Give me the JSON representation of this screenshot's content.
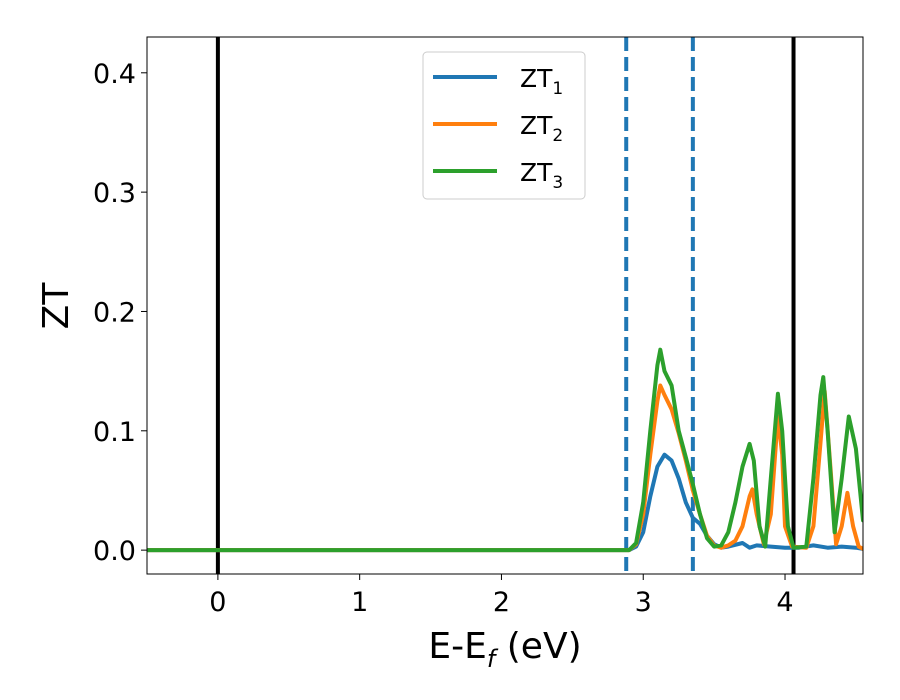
{
  "chart_data": {
    "type": "line",
    "xlabel": "E-E",
    "xlabel_sub": "f",
    "xlabel_unit": " (eV)",
    "ylabel": "ZT",
    "xlim": [
      -0.5,
      4.55
    ],
    "ylim": [
      -0.02,
      0.43
    ],
    "xticks": [
      0,
      1,
      2,
      3,
      4
    ],
    "xtick_labels": [
      "0",
      "1",
      "2",
      "3",
      "4"
    ],
    "yticks": [
      0.0,
      0.1,
      0.2,
      0.3,
      0.4
    ],
    "ytick_labels": [
      "0.0",
      "0.1",
      "0.2",
      "0.3",
      "0.4"
    ],
    "grid": false,
    "legend_position": "top-center",
    "vlines": [
      {
        "x": 0.0,
        "color": "#000000",
        "style": "solid"
      },
      {
        "x": 4.06,
        "color": "#000000",
        "style": "solid"
      },
      {
        "x": 2.88,
        "color": "#1f77b4",
        "style": "dashed"
      },
      {
        "x": 3.35,
        "color": "#1f77b4",
        "style": "dashed"
      }
    ],
    "series": [
      {
        "name": "ZT",
        "subscript": "1",
        "color": "#1f77b4",
        "points": [
          [
            -0.5,
            0
          ],
          [
            2.9,
            0
          ],
          [
            2.95,
            0.003
          ],
          [
            3.0,
            0.015
          ],
          [
            3.05,
            0.045
          ],
          [
            3.1,
            0.07
          ],
          [
            3.15,
            0.08
          ],
          [
            3.2,
            0.075
          ],
          [
            3.25,
            0.06
          ],
          [
            3.3,
            0.04
          ],
          [
            3.35,
            0.027
          ],
          [
            3.4,
            0.022
          ],
          [
            3.45,
            0.012
          ],
          [
            3.5,
            0.005
          ],
          [
            3.55,
            0.002
          ],
          [
            3.6,
            0.003
          ],
          [
            3.7,
            0.006
          ],
          [
            3.75,
            0.002
          ],
          [
            3.8,
            0.004
          ],
          [
            3.9,
            0.003
          ],
          [
            4.0,
            0.002
          ],
          [
            4.1,
            0.002
          ],
          [
            4.2,
            0.004
          ],
          [
            4.3,
            0.002
          ],
          [
            4.4,
            0.003
          ],
          [
            4.5,
            0.002
          ],
          [
            4.55,
            0.001
          ]
        ]
      },
      {
        "name": "ZT",
        "subscript": "2",
        "color": "#ff7f0e",
        "points": [
          [
            -0.5,
            0
          ],
          [
            2.9,
            0
          ],
          [
            2.95,
            0.005
          ],
          [
            3.0,
            0.03
          ],
          [
            3.05,
            0.08
          ],
          [
            3.1,
            0.125
          ],
          [
            3.12,
            0.138
          ],
          [
            3.15,
            0.13
          ],
          [
            3.2,
            0.118
          ],
          [
            3.25,
            0.098
          ],
          [
            3.3,
            0.075
          ],
          [
            3.35,
            0.05
          ],
          [
            3.4,
            0.03
          ],
          [
            3.45,
            0.012
          ],
          [
            3.5,
            0.004
          ],
          [
            3.55,
            0.002
          ],
          [
            3.6,
            0.004
          ],
          [
            3.65,
            0.008
          ],
          [
            3.7,
            0.02
          ],
          [
            3.75,
            0.045
          ],
          [
            3.77,
            0.051
          ],
          [
            3.8,
            0.03
          ],
          [
            3.85,
            0.005
          ],
          [
            3.9,
            0.03
          ],
          [
            3.95,
            0.112
          ],
          [
            3.98,
            0.08
          ],
          [
            4.0,
            0.02
          ],
          [
            4.05,
            0.003
          ],
          [
            4.15,
            0.002
          ],
          [
            4.2,
            0.02
          ],
          [
            4.25,
            0.09
          ],
          [
            4.28,
            0.133
          ],
          [
            4.32,
            0.07
          ],
          [
            4.36,
            0.005
          ],
          [
            4.4,
            0.02
          ],
          [
            4.44,
            0.048
          ],
          [
            4.48,
            0.02
          ],
          [
            4.52,
            0.003
          ],
          [
            4.55,
            0.001
          ]
        ]
      },
      {
        "name": "ZT",
        "subscript": "3",
        "color": "#2ca02c",
        "points": [
          [
            -0.5,
            0
          ],
          [
            2.9,
            0
          ],
          [
            2.95,
            0.006
          ],
          [
            3.0,
            0.04
          ],
          [
            3.05,
            0.1
          ],
          [
            3.1,
            0.155
          ],
          [
            3.12,
            0.168
          ],
          [
            3.15,
            0.15
          ],
          [
            3.2,
            0.138
          ],
          [
            3.25,
            0.1
          ],
          [
            3.3,
            0.078
          ],
          [
            3.35,
            0.055
          ],
          [
            3.4,
            0.03
          ],
          [
            3.45,
            0.01
          ],
          [
            3.5,
            0.003
          ],
          [
            3.55,
            0.004
          ],
          [
            3.6,
            0.015
          ],
          [
            3.65,
            0.04
          ],
          [
            3.7,
            0.07
          ],
          [
            3.75,
            0.089
          ],
          [
            3.78,
            0.075
          ],
          [
            3.82,
            0.02
          ],
          [
            3.86,
            0.003
          ],
          [
            3.9,
            0.06
          ],
          [
            3.95,
            0.131
          ],
          [
            3.98,
            0.1
          ],
          [
            4.02,
            0.02
          ],
          [
            4.06,
            0.002
          ],
          [
            4.15,
            0.003
          ],
          [
            4.2,
            0.06
          ],
          [
            4.25,
            0.13
          ],
          [
            4.27,
            0.145
          ],
          [
            4.3,
            0.1
          ],
          [
            4.35,
            0.015
          ],
          [
            4.4,
            0.06
          ],
          [
            4.45,
            0.112
          ],
          [
            4.5,
            0.085
          ],
          [
            4.55,
            0.025
          ]
        ]
      }
    ]
  }
}
